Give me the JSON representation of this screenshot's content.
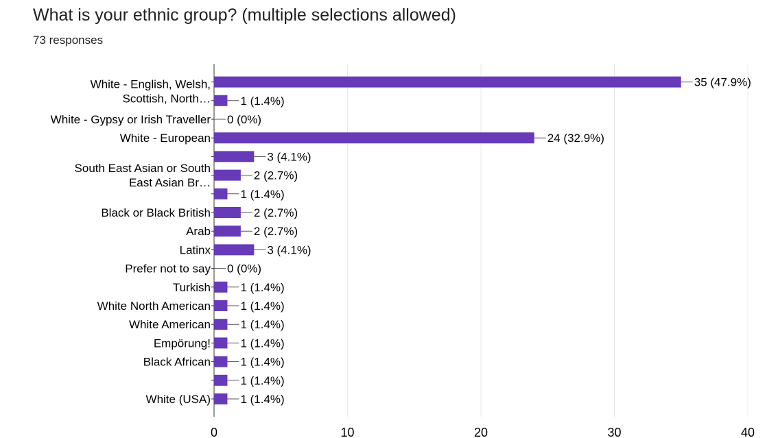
{
  "header": {
    "question": "What is your ethnic group? (multiple selections allowed)",
    "responses": "73 responses"
  },
  "colors": {
    "bar": "#673ab7",
    "grid": "#e8e8e8",
    "axis": "#333333"
  },
  "chart_data": {
    "type": "bar",
    "orientation": "horizontal",
    "title": "What is your ethnic group? (multiple selections allowed)",
    "subtitle": "73 responses",
    "xlim": [
      0,
      40
    ],
    "xticks": [
      0,
      10,
      20,
      30,
      40
    ],
    "grid": true,
    "categories": [
      "White - English, Welsh, Scottish, North…",
      "",
      "White - Gypsy or Irish Traveller",
      "White - European",
      "South East Asian or South East Asian Br…",
      "",
      "",
      "Black or Black British",
      "Arab",
      "Latinx",
      "Prefer not to say",
      "Turkish",
      "White North American",
      "White American",
      "Empörung!",
      "Black African",
      "",
      "White (USA)"
    ],
    "values": [
      35,
      1,
      0,
      24,
      3,
      2,
      1,
      2,
      2,
      3,
      0,
      1,
      1,
      1,
      1,
      1,
      1,
      1
    ],
    "data_labels": [
      "35 (47.9%)",
      "1 (1.4%)",
      "0 (0%)",
      "24 (32.9%)",
      "3 (4.1%)",
      "2 (2.7%)",
      "1 (1.4%)",
      "2 (2.7%)",
      "2 (2.7%)",
      "3 (4.1%)",
      "0 (0%)",
      "1 (1.4%)",
      "1 (1.4%)",
      "1 (1.4%)",
      "1 (1.4%)",
      "1 (1.4%)",
      "1 (1.4%)",
      "1 (1.4%)"
    ],
    "category_labels": [
      {
        "lines": [
          "White - English, Welsh,",
          "Scottish, North…"
        ],
        "rows": [
          0,
          1
        ]
      },
      {
        "lines": [
          "White - Gypsy or Irish Traveller"
        ],
        "rows": [
          2
        ]
      },
      {
        "lines": [
          "White - European"
        ],
        "rows": [
          3
        ]
      },
      {
        "lines": [
          "South East Asian or South",
          "East Asian Br…"
        ],
        "rows": [
          4,
          6
        ]
      },
      {
        "lines": [
          "Black or Black British"
        ],
        "rows": [
          7
        ]
      },
      {
        "lines": [
          "Arab"
        ],
        "rows": [
          8
        ]
      },
      {
        "lines": [
          "Latinx"
        ],
        "rows": [
          9
        ]
      },
      {
        "lines": [
          "Prefer not to say"
        ],
        "rows": [
          10
        ]
      },
      {
        "lines": [
          "Turkish"
        ],
        "rows": [
          11
        ]
      },
      {
        "lines": [
          "White North American"
        ],
        "rows": [
          12
        ]
      },
      {
        "lines": [
          "White American"
        ],
        "rows": [
          13
        ]
      },
      {
        "lines": [
          "Empörung!"
        ],
        "rows": [
          14
        ]
      },
      {
        "lines": [
          "Black African"
        ],
        "rows": [
          15
        ]
      },
      {
        "lines": [
          "White (USA)"
        ],
        "rows": [
          17
        ]
      }
    ]
  }
}
